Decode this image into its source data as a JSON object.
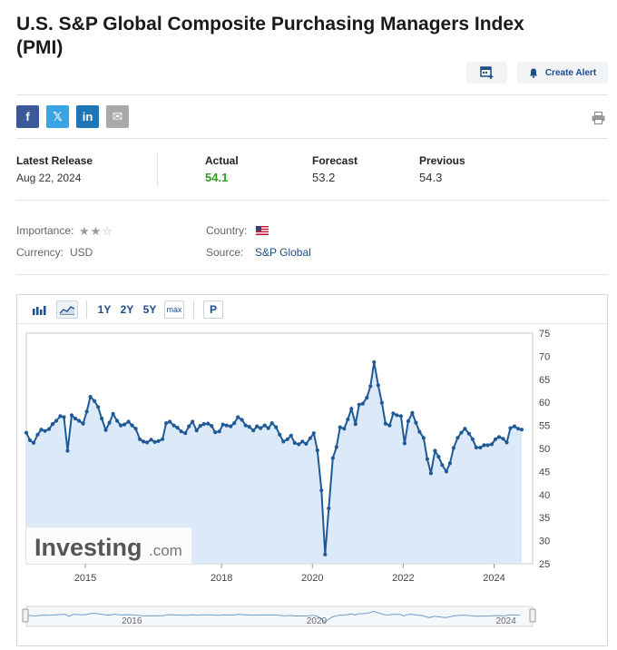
{
  "page": {
    "title": "U.S. S&P Global Composite Purchasing Managers Index (PMI)",
    "create_alert_label": "Create Alert"
  },
  "share": [
    {
      "name": "facebook",
      "glyph": "f",
      "color": "#3b5998"
    },
    {
      "name": "twitter",
      "glyph": "𝕏",
      "color": "#3aa3e3"
    },
    {
      "name": "linkedin",
      "glyph": "in",
      "color": "#1f75b6"
    },
    {
      "name": "email",
      "glyph": "✉",
      "color": "#a9a9a9"
    }
  ],
  "release": {
    "latest_label": "Latest Release",
    "latest_date": "Aug 22, 2024",
    "actual_label": "Actual",
    "actual_value": "54.1",
    "actual_color": "#2f9e1e",
    "forecast_label": "Forecast",
    "forecast_value": "53.2",
    "previous_label": "Previous",
    "previous_value": "54.3"
  },
  "meta": {
    "importance_label": "Importance:",
    "importance_stars": 2,
    "importance_max": 3,
    "country_label": "Country:",
    "country_flag": "us-flag-icon",
    "currency_label": "Currency:",
    "currency_value": "USD",
    "source_label": "Source:",
    "source_value": "S&P Global"
  },
  "toolbar": {
    "ranges": [
      "1Y",
      "2Y",
      "5Y"
    ],
    "max_label": "max",
    "p_label": "P"
  },
  "watermark": {
    "brand": "Investing",
    "suffix": ".com"
  },
  "chart_data": {
    "type": "area",
    "title": "",
    "xlabel": "",
    "ylabel": "",
    "ylim": [
      25,
      75
    ],
    "yticks": [
      75,
      70,
      65,
      60,
      55,
      50,
      45,
      40,
      35,
      30,
      25
    ],
    "xticks": [
      "2015",
      "2018",
      "2020",
      "2022",
      "2024"
    ],
    "xtick_dates": [
      2015.0,
      2018.0,
      2020.0,
      2022.0,
      2024.0
    ],
    "xlim": [
      2013.7,
      2024.85
    ],
    "x": [
      2013.7,
      2013.78,
      2013.86,
      2013.95,
      2014.03,
      2014.11,
      2014.2,
      2014.28,
      2014.36,
      2014.45,
      2014.53,
      2014.61,
      2014.7,
      2014.78,
      2014.86,
      2014.95,
      2015.03,
      2015.11,
      2015.2,
      2015.28,
      2015.36,
      2015.45,
      2015.53,
      2015.61,
      2015.7,
      2015.78,
      2015.86,
      2015.95,
      2016.03,
      2016.11,
      2016.2,
      2016.28,
      2016.36,
      2016.45,
      2016.53,
      2016.61,
      2016.7,
      2016.78,
      2016.86,
      2016.95,
      2017.03,
      2017.11,
      2017.2,
      2017.28,
      2017.36,
      2017.45,
      2017.53,
      2017.61,
      2017.7,
      2017.78,
      2017.86,
      2017.95,
      2018.03,
      2018.11,
      2018.2,
      2018.28,
      2018.36,
      2018.45,
      2018.53,
      2018.61,
      2018.7,
      2018.78,
      2018.86,
      2018.95,
      2019.03,
      2019.11,
      2019.2,
      2019.28,
      2019.36,
      2019.45,
      2019.53,
      2019.61,
      2019.7,
      2019.78,
      2019.86,
      2019.95,
      2020.03,
      2020.11,
      2020.2,
      2020.28,
      2020.36,
      2020.45,
      2020.53,
      2020.61,
      2020.7,
      2020.78,
      2020.86,
      2020.95,
      2021.03,
      2021.11,
      2021.2,
      2021.28,
      2021.36,
      2021.45,
      2021.53,
      2021.61,
      2021.7,
      2021.78,
      2021.86,
      2021.95,
      2022.03,
      2022.11,
      2022.2,
      2022.28,
      2022.36,
      2022.45,
      2022.53,
      2022.61,
      2022.7,
      2022.78,
      2022.86,
      2022.95,
      2023.03,
      2023.11,
      2023.2,
      2023.28,
      2023.36,
      2023.45,
      2023.53,
      2023.61,
      2023.7,
      2023.78,
      2023.86,
      2023.95,
      2024.03,
      2024.11,
      2024.2,
      2024.28,
      2024.36,
      2024.45,
      2024.53,
      2024.61
    ],
    "series": [
      {
        "color": "#1f5a96",
        "values": [
          53.4,
          51.8,
          51.2,
          53.0,
          54.1,
          53.8,
          54.2,
          55.3,
          56.0,
          57.0,
          56.8,
          49.5,
          57.2,
          56.5,
          56.0,
          55.4,
          58.0,
          61.2,
          60.3,
          59.0,
          56.5,
          54.0,
          55.6,
          57.5,
          56.0,
          55.0,
          55.2,
          55.8,
          55.0,
          54.3,
          52.0,
          51.5,
          51.3,
          51.9,
          51.4,
          51.6,
          52.0,
          55.5,
          55.8,
          55.0,
          54.5,
          53.7,
          53.3,
          54.8,
          55.8,
          53.9,
          54.9,
          55.3,
          55.4,
          54.9,
          53.5,
          53.7,
          55.2,
          55.0,
          54.8,
          55.5,
          56.8,
          56.2,
          55.0,
          54.7,
          53.9,
          54.8,
          54.4,
          55.0,
          54.4,
          55.5,
          54.6,
          53.0,
          51.5,
          52.0,
          52.8,
          51.2,
          50.9,
          51.5,
          51.0,
          52.2,
          53.3,
          49.6,
          40.9,
          27.0,
          37.0,
          47.9,
          50.3,
          54.6,
          54.3,
          56.3,
          58.6,
          55.3,
          59.5,
          59.7,
          61.0,
          63.5,
          68.7,
          63.7,
          59.9,
          55.4,
          55.0,
          57.6,
          57.2,
          57.0,
          51.1,
          55.9,
          57.7,
          55.6,
          53.6,
          52.3,
          47.7,
          44.6,
          49.5,
          48.2,
          46.4,
          45.0,
          46.8,
          50.1,
          52.3,
          53.4,
          54.3,
          53.2,
          52.0,
          50.2,
          50.2,
          50.7,
          50.7,
          50.9,
          52.0,
          52.5,
          52.1,
          51.3,
          54.4,
          54.8,
          54.3,
          54.1
        ]
      }
    ]
  },
  "navigator": {
    "labels": [
      "2016",
      "2020",
      "2024"
    ]
  }
}
